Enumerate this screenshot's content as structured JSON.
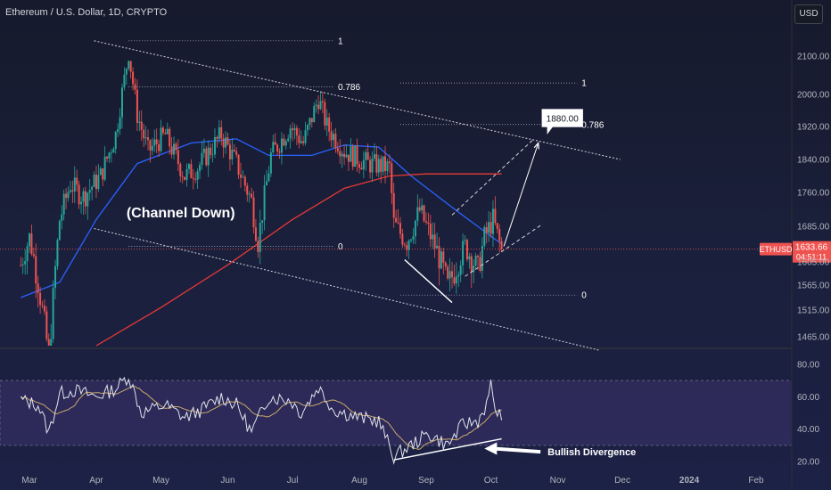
{
  "header": {
    "title": "Ethereum / U.S. Dollar, 1D, CRYPTO",
    "currency": "USD"
  },
  "colors": {
    "up": "#26a69a",
    "down": "#ef5350",
    "ma_blue": "#2962ff",
    "ma_red": "#e53935",
    "rsi": "#e0e3eb",
    "rsi_ma": "#c9a86a",
    "price_line": "#ef5350",
    "trend": "#d1d4dc"
  },
  "chart_data": {
    "type": "candlestick",
    "title": "Ethereum / U.S. Dollar, 1D, CRYPTO",
    "ylim": [
      1440,
      2180
    ],
    "y_ticks": [
      "2100.00",
      "2000.00",
      "1920.00",
      "1840.00",
      "1760.00",
      "1685.00",
      "1605.00",
      "1565.00",
      "1515.00",
      "1465.00"
    ],
    "x_ticks": [
      "Mar",
      "Apr",
      "May",
      "Jun",
      "Jul",
      "Aug",
      "Sep",
      "Oct",
      "Nov",
      "Dec",
      "2024",
      "Feb"
    ],
    "current_price": {
      "symbol": "ETHUSD",
      "price": "1633.66",
      "countdown": "04:51:11",
      "value": 1633.66
    },
    "close_anchors": [
      [
        "2023-02-25",
        1600
      ],
      [
        "2023-03-01",
        1660
      ],
      [
        "2023-03-05",
        1570
      ],
      [
        "2023-03-10",
        1430
      ],
      [
        "2023-03-15",
        1700
      ],
      [
        "2023-03-20",
        1780
      ],
      [
        "2023-03-26",
        1750
      ],
      [
        "2023-04-03",
        1800
      ],
      [
        "2023-04-10",
        1900
      ],
      [
        "2023-04-16",
        2110
      ],
      [
        "2023-04-20",
        1950
      ],
      [
        "2023-04-25",
        1860
      ],
      [
        "2023-05-03",
        1900
      ],
      [
        "2023-05-12",
        1800
      ],
      [
        "2023-05-18",
        1820
      ],
      [
        "2023-05-29",
        1900
      ],
      [
        "2023-06-05",
        1830
      ],
      [
        "2023-06-12",
        1740
      ],
      [
        "2023-06-15",
        1650
      ],
      [
        "2023-06-21",
        1850
      ],
      [
        "2023-06-30",
        1920
      ],
      [
        "2023-07-06",
        1880
      ],
      [
        "2023-07-13",
        1990
      ],
      [
        "2023-07-17",
        1920
      ],
      [
        "2023-07-25",
        1860
      ],
      [
        "2023-08-05",
        1830
      ],
      [
        "2023-08-15",
        1820
      ],
      [
        "2023-08-17",
        1690
      ],
      [
        "2023-08-23",
        1650
      ],
      [
        "2023-08-29",
        1720
      ],
      [
        "2023-09-06",
        1630
      ],
      [
        "2023-09-11",
        1560
      ],
      [
        "2023-09-19",
        1640
      ],
      [
        "2023-09-25",
        1590
      ],
      [
        "2023-09-28",
        1660
      ],
      [
        "2023-10-02",
        1700
      ],
      [
        "2023-10-06",
        1630
      ]
    ],
    "moving_averages": [
      {
        "color": "#2962ff",
        "points": [
          [
            "2023-02-25",
            1540
          ],
          [
            "2023-03-15",
            1570
          ],
          [
            "2023-04-01",
            1700
          ],
          [
            "2023-04-20",
            1830
          ],
          [
            "2023-05-15",
            1880
          ],
          [
            "2023-06-05",
            1890
          ],
          [
            "2023-06-20",
            1850
          ],
          [
            "2023-07-10",
            1850
          ],
          [
            "2023-07-25",
            1875
          ],
          [
            "2023-08-10",
            1870
          ],
          [
            "2023-08-25",
            1800
          ],
          [
            "2023-09-15",
            1720
          ],
          [
            "2023-10-06",
            1645
          ]
        ]
      },
      {
        "color": "#e53935",
        "points": [
          [
            "2023-04-01",
            1440
          ],
          [
            "2023-05-01",
            1520
          ],
          [
            "2023-06-01",
            1600
          ],
          [
            "2023-07-01",
            1700
          ],
          [
            "2023-07-25",
            1770
          ],
          [
            "2023-08-15",
            1800
          ],
          [
            "2023-09-01",
            1805
          ],
          [
            "2023-10-06",
            1805
          ]
        ]
      }
    ],
    "channel_lines": [
      {
        "start": [
          "2023-03-31",
          2140
        ],
        "end": [
          "2023-11-30",
          1840
        ]
      },
      {
        "start": [
          "2023-03-31",
          1680
        ],
        "end": [
          "2023-11-20",
          1440
        ]
      }
    ],
    "fib_sets": [
      {
        "x_start": "2023-04-16",
        "x_end": "2023-07-20",
        "levels": [
          {
            "label": "1",
            "price": 2140
          },
          {
            "label": "0.786",
            "price": 2020
          },
          {
            "label": "0",
            "price": 1640
          }
        ]
      },
      {
        "x_start": "2023-08-20",
        "x_end": "2023-11-10",
        "levels": [
          {
            "label": "1",
            "price": 2030
          },
          {
            "label": "0.786",
            "price": 1925
          },
          {
            "label": "0",
            "price": 1545
          }
        ]
      }
    ],
    "projection": {
      "arrow": {
        "start": [
          "2023-10-07",
          1640
        ],
        "end": [
          "2023-10-23",
          1880
        ]
      },
      "label": "1880.00",
      "channel": [
        {
          "start": [
            "2023-09-19",
            1580
          ],
          "end": [
            "2023-10-25",
            1690
          ]
        },
        {
          "start": [
            "2023-09-13",
            1710
          ],
          "end": [
            "2023-10-21",
            1890
          ]
        }
      ]
    },
    "divergence_price_line": {
      "start": [
        "2023-08-22",
        1610
      ],
      "end": [
        "2023-09-13",
        1530
      ]
    },
    "annotations": [
      {
        "text": "(Channel Down)",
        "at": [
          "2023-04-15",
          1705
        ]
      }
    ],
    "rsi": {
      "ylim": [
        15,
        90
      ],
      "y_ticks": [
        "80.00",
        "60.00",
        "40.00",
        "20.00"
      ],
      "band": [
        30,
        70
      ],
      "anchors": [
        [
          "2023-02-25",
          58
        ],
        [
          "2023-03-05",
          55
        ],
        [
          "2023-03-10",
          38
        ],
        [
          "2023-03-15",
          62
        ],
        [
          "2023-03-22",
          64
        ],
        [
          "2023-04-01",
          60
        ],
        [
          "2023-04-10",
          65
        ],
        [
          "2023-04-16",
          73
        ],
        [
          "2023-04-22",
          50
        ],
        [
          "2023-05-03",
          55
        ],
        [
          "2023-05-12",
          47
        ],
        [
          "2023-05-20",
          52
        ],
        [
          "2023-05-29",
          60
        ],
        [
          "2023-06-05",
          55
        ],
        [
          "2023-06-12",
          38
        ],
        [
          "2023-06-20",
          60
        ],
        [
          "2023-06-30",
          58
        ],
        [
          "2023-07-05",
          50
        ],
        [
          "2023-07-13",
          66
        ],
        [
          "2023-07-20",
          52
        ],
        [
          "2023-08-01",
          47
        ],
        [
          "2023-08-10",
          45
        ],
        [
          "2023-08-17",
          23
        ],
        [
          "2023-08-25",
          30
        ],
        [
          "2023-09-02",
          37
        ],
        [
          "2023-09-11",
          30
        ],
        [
          "2023-09-18",
          43
        ],
        [
          "2023-09-25",
          45
        ],
        [
          "2023-09-30",
          58
        ],
        [
          "2023-10-01",
          68
        ],
        [
          "2023-10-04",
          47
        ],
        [
          "2023-10-06",
          50
        ]
      ],
      "divergence_line": {
        "start": [
          "2023-08-17",
          21
        ],
        "end": [
          "2023-10-06",
          34
        ]
      },
      "divergence_label": "Bullish Divergence",
      "label_arrow": {
        "start": [
          "2023-10-24",
          26
        ],
        "end": [
          "2023-09-28",
          28
        ]
      }
    }
  }
}
